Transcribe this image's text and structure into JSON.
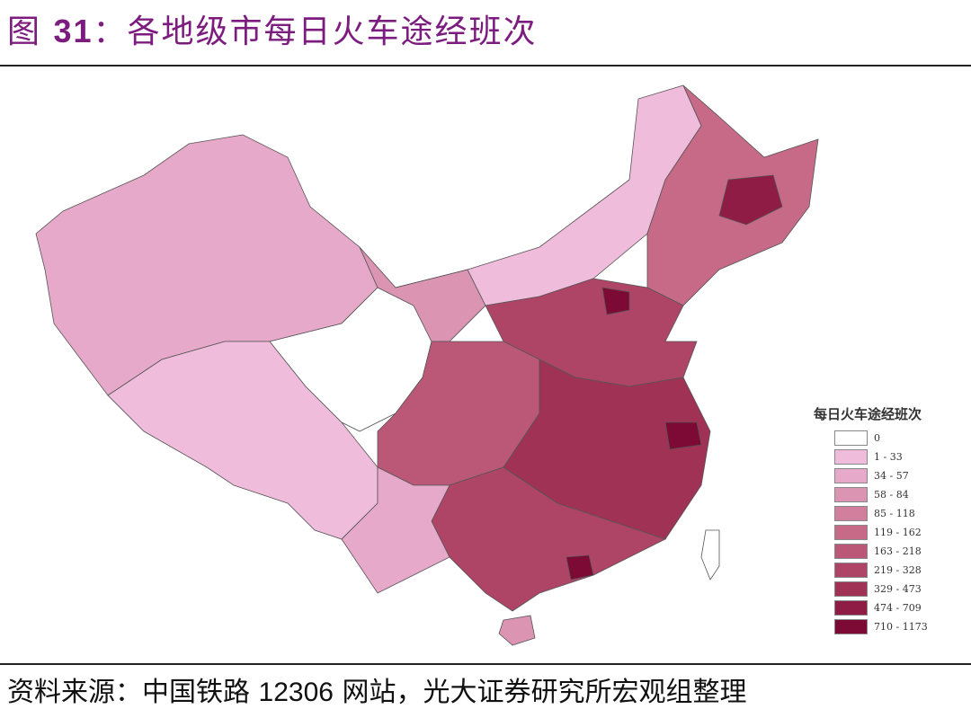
{
  "title": {
    "prefix": "图",
    "number": "31",
    "text": "：各地级市每日火车途经班次"
  },
  "legend": {
    "title": "每日火车途经班次",
    "classes": [
      {
        "label": "0",
        "color": "#ffffff"
      },
      {
        "label": "1 - 33",
        "color": "#f0bcdb"
      },
      {
        "label": "34 - 57",
        "color": "#e6a9c9"
      },
      {
        "label": "58 - 84",
        "color": "#dc94b3"
      },
      {
        "label": "85 - 118",
        "color": "#d17f9d"
      },
      {
        "label": "119 - 162",
        "color": "#c66a88"
      },
      {
        "label": "163 - 218",
        "color": "#bb5878"
      },
      {
        "label": "219 - 328",
        "color": "#ae4466"
      },
      {
        "label": "329 - 473",
        "color": "#a03256"
      },
      {
        "label": "474 - 709",
        "color": "#8f1c44"
      },
      {
        "label": "710 - 1173",
        "color": "#7d0a34"
      }
    ]
  },
  "source": {
    "prefix": "资料来源：中国铁路",
    "num": "12306",
    "suffix": "网站，光大证券研究所宏观组整理"
  }
}
